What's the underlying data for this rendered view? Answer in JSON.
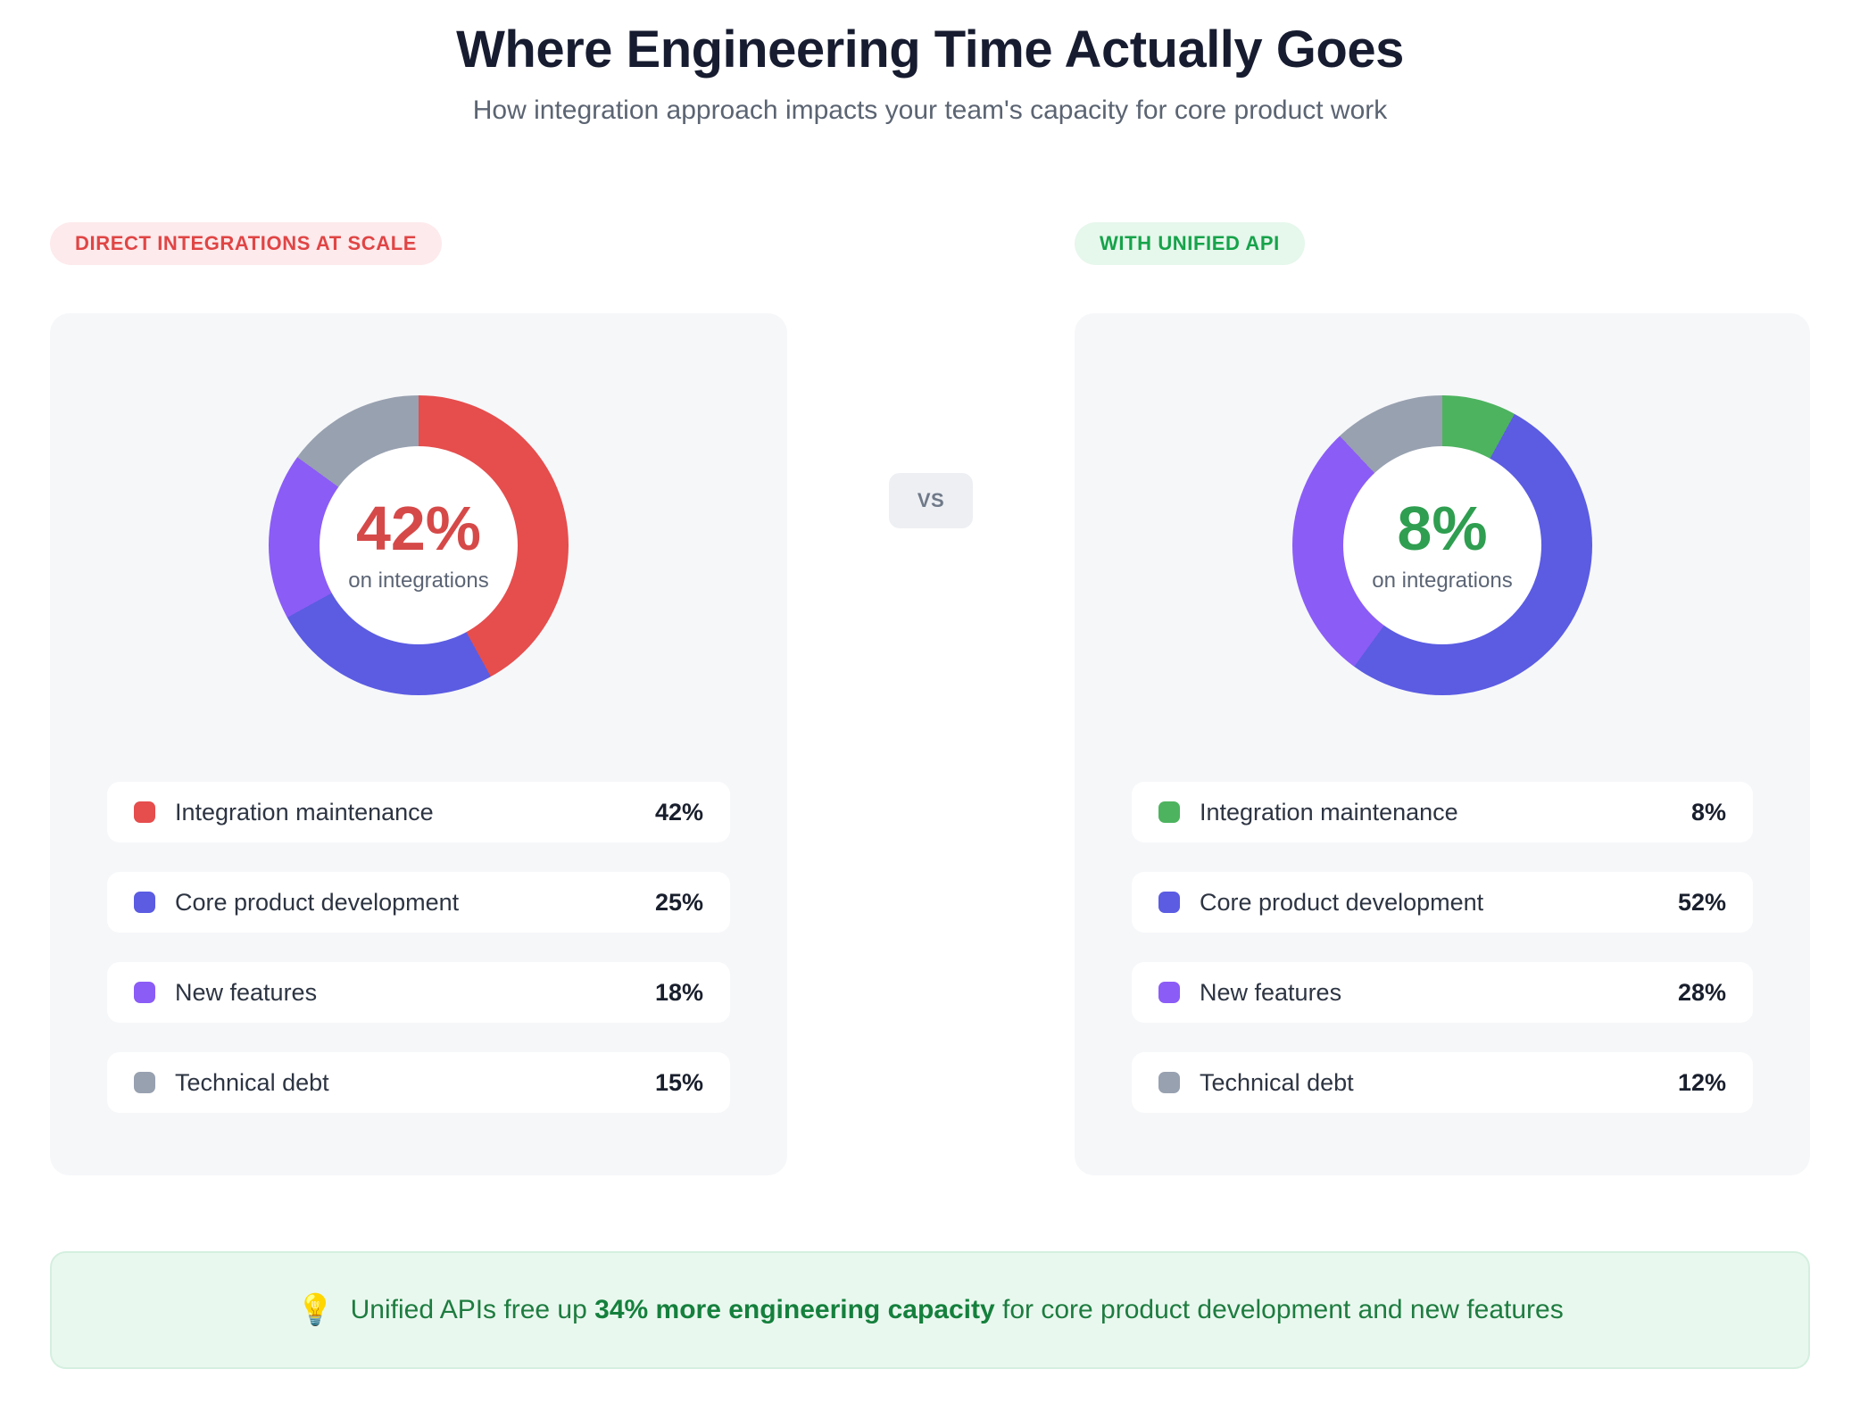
{
  "header": {
    "title": "Where Engineering Time Actually Goes",
    "subtitle": "How integration approach impacts your team's capacity for core product work"
  },
  "vs_label": "VS",
  "panels": [
    {
      "badge": "DIRECT INTEGRATIONS AT SCALE",
      "badge_text_color": "#e04545",
      "badge_bg_color": "#fdeaec",
      "accent": "#d64949",
      "center_value": "42%",
      "center_label": "on integrations",
      "legend": [
        {
          "label": "Integration maintenance",
          "value": "42%"
        },
        {
          "label": "Core product development",
          "value": "25%"
        },
        {
          "label": "New features",
          "value": "18%"
        },
        {
          "label": "Technical debt",
          "value": "15%"
        }
      ]
    },
    {
      "badge": "WITH UNIFIED API",
      "badge_text_color": "#16a34a",
      "badge_bg_color": "#e6f7ec",
      "accent": "#2f9e50",
      "center_value": "8%",
      "center_label": "on integrations",
      "legend": [
        {
          "label": "Integration maintenance",
          "value": "8%"
        },
        {
          "label": "Core product development",
          "value": "52%"
        },
        {
          "label": "New features",
          "value": "28%"
        },
        {
          "label": "Technical debt",
          "value": "12%"
        }
      ]
    }
  ],
  "chart_data": [
    {
      "type": "pie",
      "title": "Direct integrations at scale",
      "categories": [
        "Integration maintenance",
        "Core product development",
        "New features",
        "Technical debt"
      ],
      "values": [
        42,
        25,
        18,
        15
      ],
      "colors": [
        "#e64d4d",
        "#5b5ce2",
        "#8b5cf6",
        "#98a1b0"
      ],
      "center_value": "42%",
      "center_label": "on integrations",
      "legend_position": "below"
    },
    {
      "type": "pie",
      "title": "With unified API",
      "categories": [
        "Integration maintenance",
        "Core product development",
        "New features",
        "Technical debt"
      ],
      "values": [
        8,
        52,
        28,
        12
      ],
      "colors": [
        "#4db35f",
        "#5b5ce2",
        "#8b5cf6",
        "#98a1b0"
      ],
      "center_value": "8%",
      "center_label": "on integrations",
      "legend_position": "below"
    }
  ],
  "footer": {
    "icon": "💡",
    "prefix": "Unified APIs free up ",
    "highlight": "34% more engineering capacity",
    "suffix": " for core product development and new features"
  }
}
